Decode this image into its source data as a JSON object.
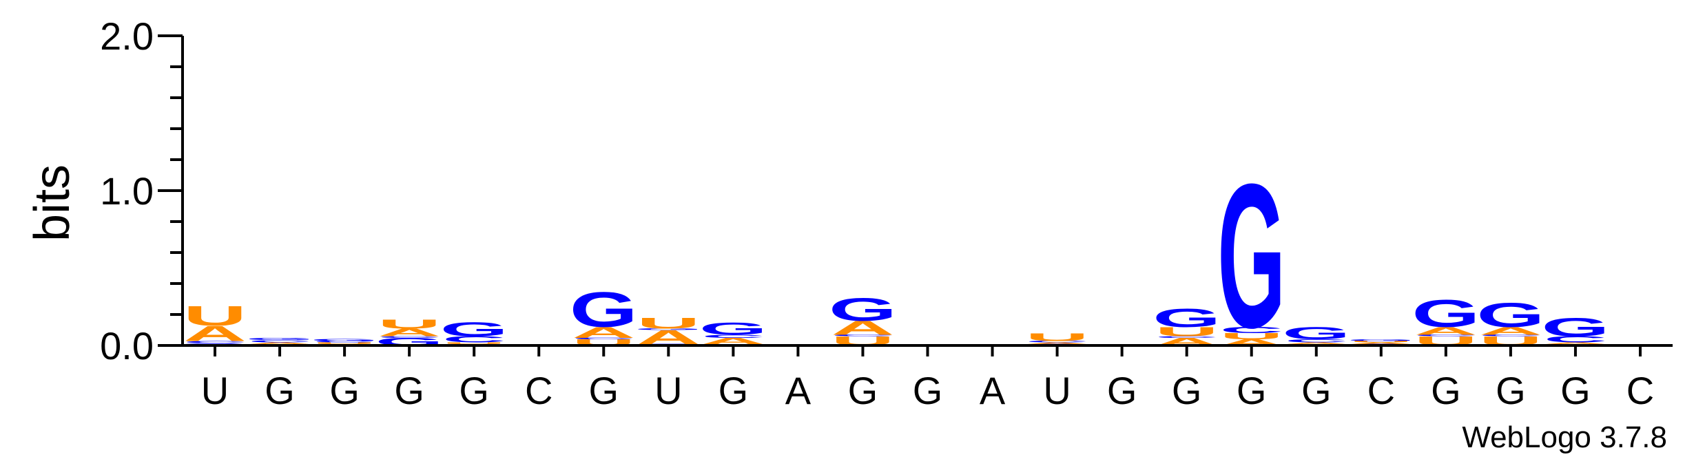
{
  "chart_data": {
    "type": "sequence-logo",
    "ylabel": "bits",
    "ylim": [
      0,
      2.0
    ],
    "yticks": [
      "0.0",
      "1.0",
      "2.0"
    ],
    "positions": [
      "U",
      "G",
      "G",
      "G",
      "G",
      "C",
      "G",
      "U",
      "G",
      "A",
      "G",
      "G",
      "A",
      "U",
      "G",
      "G",
      "G",
      "G",
      "C",
      "G",
      "G",
      "G",
      "C"
    ],
    "colors": {
      "A": "#ff8c00",
      "U": "#ff8c00",
      "G": "#0000ff",
      "C": "#0000ff"
    },
    "stacks": [
      [
        [
          "G",
          0.015
        ],
        [
          "C",
          0.015
        ],
        [
          "A",
          0.1
        ],
        [
          "U",
          0.13
        ]
      ],
      [
        [
          "U",
          0.01
        ],
        [
          "A",
          0.01
        ],
        [
          "C",
          0.015
        ],
        [
          "G",
          0.015
        ]
      ],
      [
        [
          "A",
          0.01
        ],
        [
          "U",
          0.01
        ],
        [
          "C",
          0.01
        ],
        [
          "G",
          0.015
        ]
      ],
      [
        [
          "G",
          0.05
        ],
        [
          "C",
          0.01
        ],
        [
          "A",
          0.05
        ],
        [
          "U",
          0.06
        ]
      ],
      [
        [
          "A",
          0.01
        ],
        [
          "U",
          0.01
        ],
        [
          "C",
          0.04
        ],
        [
          "G",
          0.09
        ]
      ],
      [],
      [
        [
          "U",
          0.04
        ],
        [
          "C",
          0.01
        ],
        [
          "A",
          0.07
        ],
        [
          "G",
          0.23
        ]
      ],
      [
        [
          "C",
          0.01
        ],
        [
          "A",
          0.09
        ],
        [
          "G",
          0.01
        ],
        [
          "U",
          0.07
        ]
      ],
      [
        [
          "U",
          0.01
        ],
        [
          "A",
          0.04
        ],
        [
          "C",
          0.02
        ],
        [
          "G",
          0.08
        ]
      ],
      [],
      [
        [
          "U",
          0.06
        ],
        [
          "C",
          0.01
        ],
        [
          "A",
          0.09
        ],
        [
          "G",
          0.15
        ]
      ],
      [],
      [],
      [
        [
          "G",
          0.01
        ],
        [
          "A",
          0.01
        ],
        [
          "C",
          0.01
        ],
        [
          "U",
          0.05
        ]
      ],
      [],
      [
        [
          "A",
          0.05
        ],
        [
          "C",
          0.01
        ],
        [
          "U",
          0.06
        ],
        [
          "G",
          0.12
        ]
      ],
      [
        [
          "A",
          0.04
        ],
        [
          "U",
          0.04
        ],
        [
          "C",
          0.04
        ],
        [
          "G",
          0.95
        ]
      ],
      [
        [
          "U",
          0.01
        ],
        [
          "A",
          0.01
        ],
        [
          "C",
          0.02
        ],
        [
          "G",
          0.08
        ]
      ],
      [
        [
          "C",
          0.01
        ],
        [
          "A",
          0.01
        ],
        [
          "U",
          0.01
        ],
        [
          "G",
          0.01
        ]
      ],
      [
        [
          "U",
          0.06
        ],
        [
          "C",
          0.01
        ],
        [
          "A",
          0.05
        ],
        [
          "G",
          0.18
        ]
      ],
      [
        [
          "U",
          0.06
        ],
        [
          "C",
          0.01
        ],
        [
          "A",
          0.05
        ],
        [
          "G",
          0.16
        ]
      ],
      [
        [
          "U",
          0.01
        ],
        [
          "A",
          0.01
        ],
        [
          "C",
          0.04
        ],
        [
          "G",
          0.12
        ]
      ],
      []
    ]
  },
  "footer": {
    "credit": "WebLogo 3.7.8"
  }
}
